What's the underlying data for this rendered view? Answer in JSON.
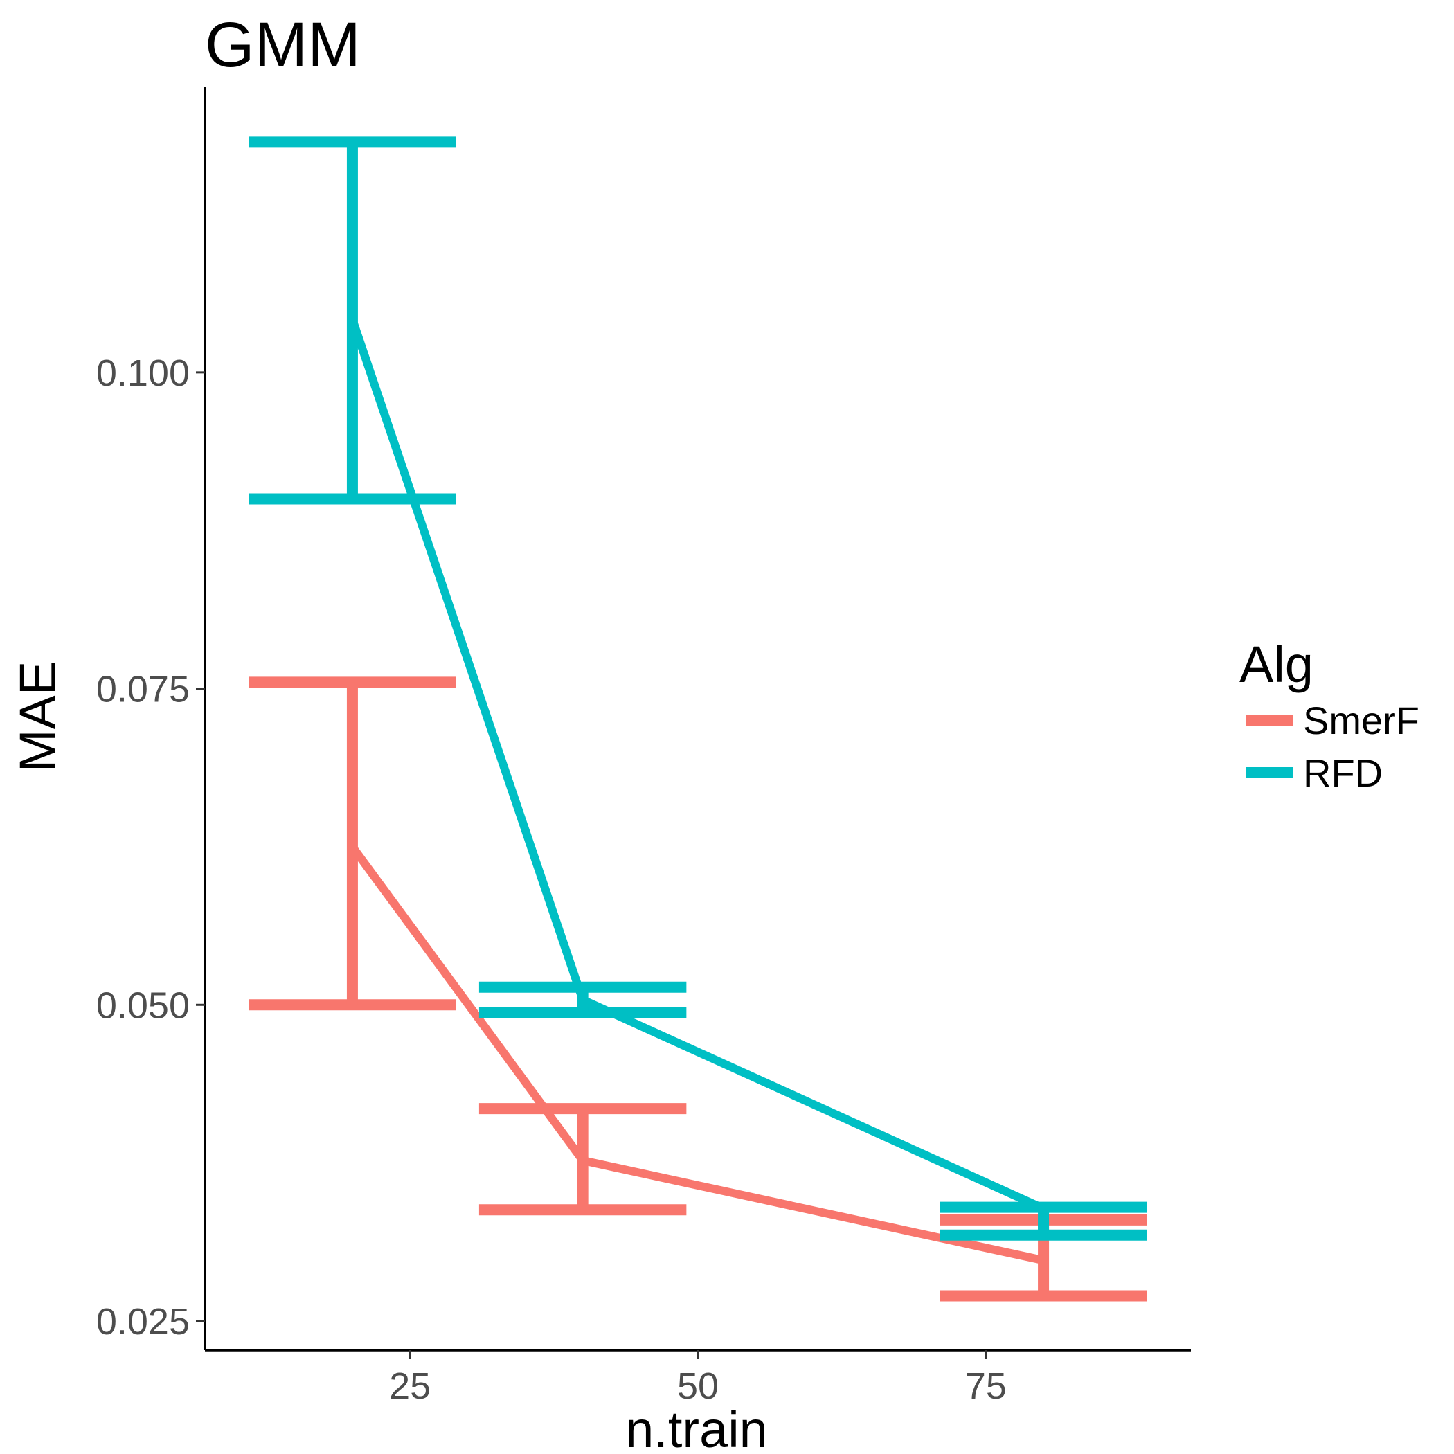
{
  "chart_data": {
    "type": "line",
    "title": "GMM",
    "xlabel": "n.train",
    "ylabel": "MAE",
    "x_ticks": [
      25,
      50,
      75
    ],
    "x_tick_labels": [
      "25",
      "50",
      "75"
    ],
    "y_ticks": [
      0.025,
      0.05,
      0.075,
      0.1
    ],
    "y_tick_labels": [
      "0.025",
      "0.050",
      "0.075",
      "0.100"
    ],
    "xlim": [
      7.2,
      92.8
    ],
    "ylim": [
      0.0227,
      0.1226
    ],
    "grid": false,
    "legend": {
      "title": "Alg",
      "position": "right"
    },
    "error_bar_halfwidth": 9,
    "series": [
      {
        "name": "SmerF",
        "color": "#F8766D",
        "x": [
          20,
          40,
          80
        ],
        "y": [
          0.0625,
          0.0377,
          0.0298
        ],
        "lower": [
          0.05,
          0.0338,
          0.027
        ],
        "upper": [
          0.0755,
          0.0418,
          0.033
        ]
      },
      {
        "name": "RFD",
        "color": "#00BFC4",
        "x": [
          20,
          40,
          80
        ],
        "y": [
          0.1042,
          0.0504,
          0.0339
        ],
        "lower": [
          0.09,
          0.0494,
          0.0318
        ],
        "upper": [
          0.1182,
          0.0514,
          0.034
        ]
      }
    ]
  }
}
